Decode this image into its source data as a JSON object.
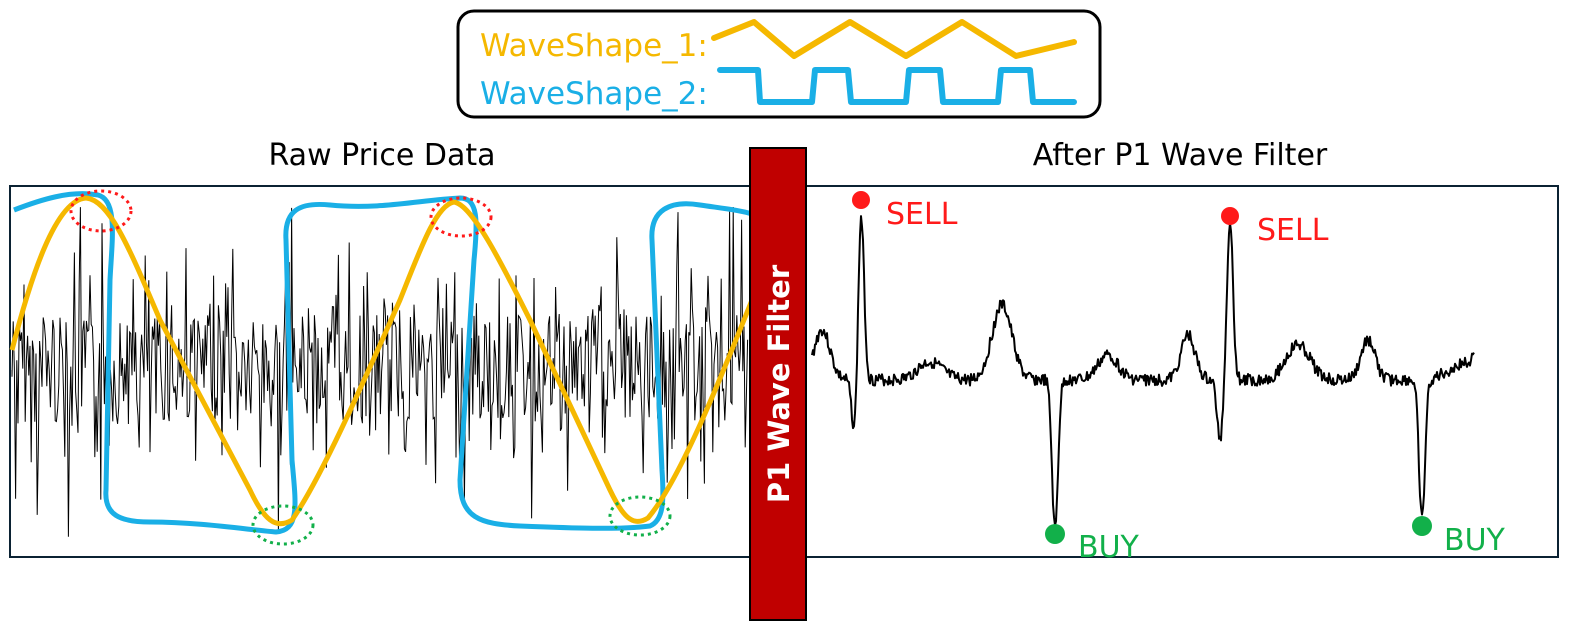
{
  "legend": {
    "wave1_label": "WaveShape_1:",
    "wave2_label": "WaveShape_2:"
  },
  "left_panel": {
    "title": "Raw Price Data"
  },
  "right_panel": {
    "title": "After P1 Wave Filter"
  },
  "filter": {
    "label": "P1 Wave Filter"
  },
  "signals": [
    {
      "type": "sell",
      "label": "SELL"
    },
    {
      "type": "sell",
      "label": "SELL"
    },
    {
      "type": "buy",
      "label": "BUY"
    },
    {
      "type": "buy",
      "label": "BUY"
    }
  ],
  "colors": {
    "wave1": "#F5B800",
    "wave2": "#1AAFE6",
    "filter": "#C00000",
    "sell": "#FF1A1A",
    "buy": "#12B04A",
    "frame": "#0B2233",
    "signal_trace": "#000000"
  }
}
